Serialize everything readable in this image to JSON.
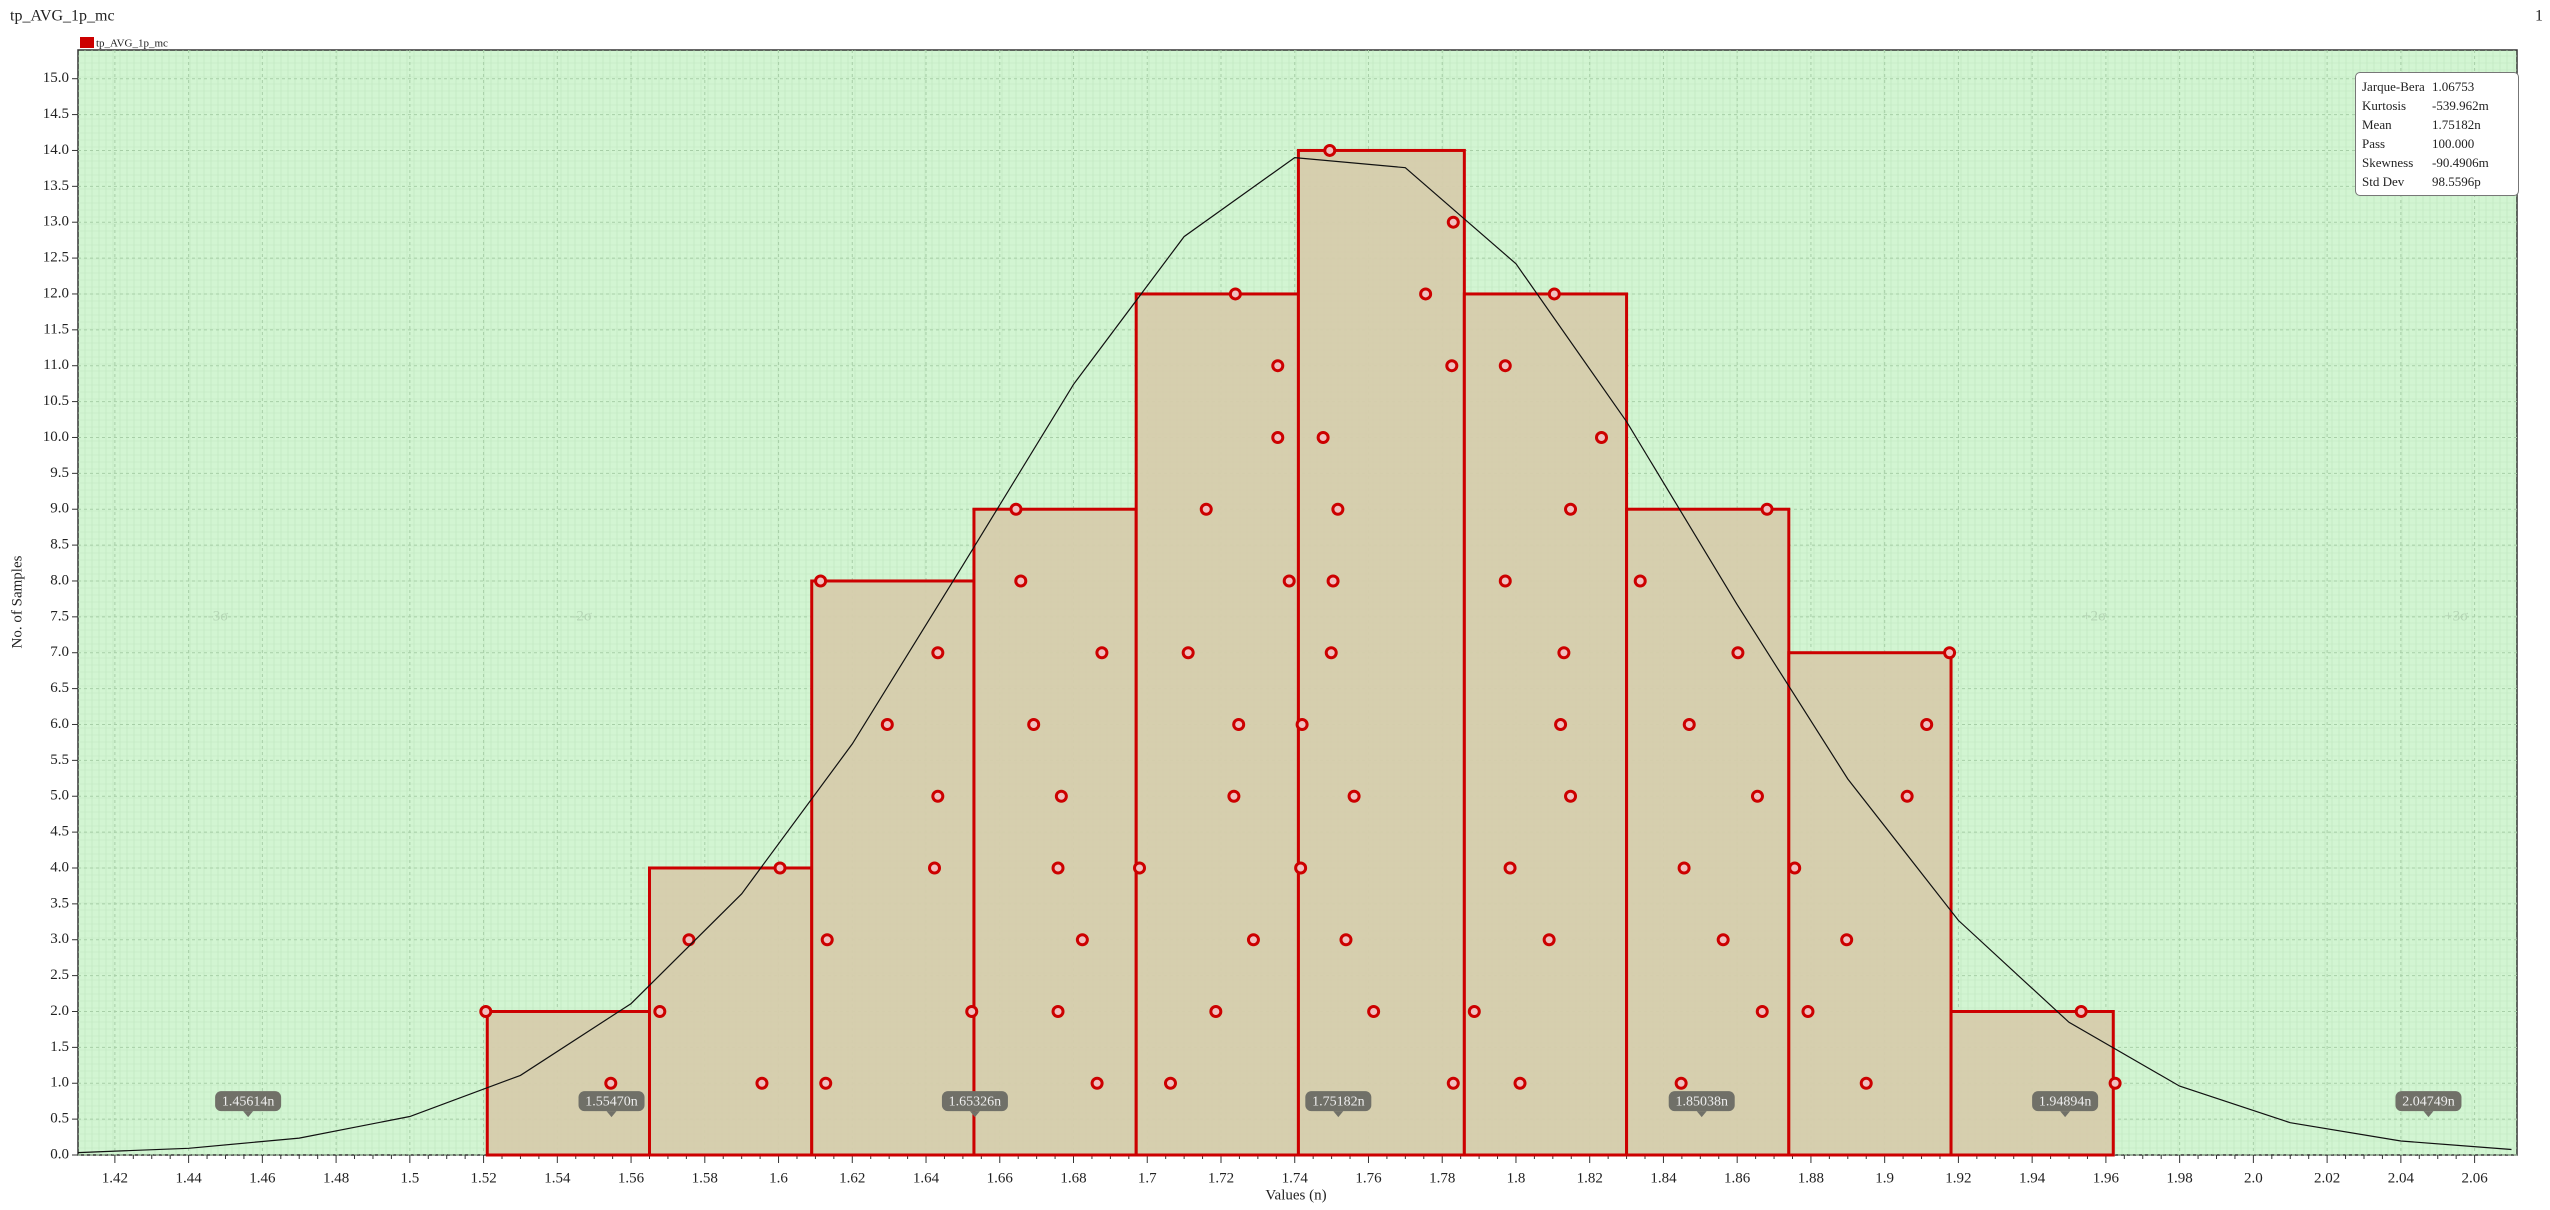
{
  "chart_data": {
    "type": "histogram",
    "title": "tp_AVG_1p_mc",
    "page_number": "1",
    "legend": "tp_AVG_1p_mc",
    "xlabel": "Values (n)",
    "ylabel": "No. of Samples",
    "color": "#cc0000",
    "fill": "#d6ccac",
    "bins": [
      1.521,
      1.565,
      1.609,
      1.653,
      1.697,
      1.741,
      1.786,
      1.83,
      1.874,
      1.918,
      1.962
    ],
    "values": [
      2,
      4,
      8,
      9,
      12,
      14,
      12,
      9,
      7,
      2
    ],
    "samples": {
      "x": [
        1.5206,
        1.5545,
        1.5678,
        1.5757,
        1.5955,
        1.6004,
        1.6114,
        1.6132,
        1.6128,
        1.6295,
        1.6423,
        1.6432,
        1.6432,
        1.6524,
        1.6644,
        1.6657,
        1.6692,
        1.6758,
        1.6758,
        1.6767,
        1.6824,
        1.6864,
        1.6877,
        1.6979,
        1.7063,
        1.7111,
        1.716,
        1.7186,
        1.7235,
        1.7239,
        1.7248,
        1.7288,
        1.7354,
        1.7354,
        1.7385,
        1.7416,
        1.742,
        1.7477,
        1.7495,
        1.7499,
        1.7504,
        1.7517,
        1.7539,
        1.7561,
        1.7614,
        1.7755,
        1.7826,
        1.783,
        1.783,
        1.7887,
        1.7971,
        1.7971,
        1.7984,
        1.8011,
        1.809,
        1.8104,
        1.8121,
        1.813,
        1.8148,
        1.8148,
        1.8232,
        1.8337,
        1.8448,
        1.8456,
        1.847,
        1.8562,
        1.8602,
        1.8655,
        1.8668,
        1.8681,
        1.8756,
        1.8792,
        1.8897,
        1.895,
        1.9061,
        1.9114,
        1.9176,
        1.9533,
        1.9625
      ],
      "values": [
        2,
        1,
        2,
        3,
        1,
        4,
        8,
        3,
        1,
        6,
        4,
        7,
        5,
        2,
        9,
        8,
        6,
        4,
        2,
        5,
        3,
        1,
        7,
        4,
        1,
        7,
        9,
        2,
        5,
        12,
        6,
        3,
        11,
        10,
        8,
        4,
        6,
        10,
        14,
        7,
        8,
        9,
        3,
        5,
        2,
        12,
        11,
        13,
        1,
        2,
        8,
        11,
        4,
        1,
        3,
        12,
        6,
        7,
        9,
        5,
        10,
        8,
        1,
        4,
        6,
        3,
        7,
        5,
        2,
        9,
        4,
        2,
        3,
        1,
        5,
        6,
        7,
        2,
        1
      ]
    },
    "curve": {
      "x": [
        1.41,
        1.44,
        1.47,
        1.5,
        1.53,
        1.56,
        1.59,
        1.62,
        1.65,
        1.68,
        1.71,
        1.74,
        1.77,
        1.8,
        1.83,
        1.86,
        1.89,
        1.92,
        1.95,
        1.98,
        2.01,
        2.04,
        2.07
      ],
      "values": [
        0.034,
        0.094,
        0.236,
        0.536,
        1.11,
        2.11,
        3.64,
        5.73,
        8.22,
        10.74,
        12.8,
        13.9,
        13.76,
        12.42,
        10.22,
        7.67,
        5.24,
        3.27,
        1.85,
        0.96,
        0.45,
        0.195,
        0.076
      ]
    },
    "markers": [
      {
        "value": 1.45614,
        "label": "1.45614n"
      },
      {
        "value": 1.5547,
        "label": "1.55470n"
      },
      {
        "value": 1.65326,
        "label": "1.65326n"
      },
      {
        "value": 1.75182,
        "label": "1.75182n"
      },
      {
        "value": 1.85038,
        "label": "1.85038n"
      },
      {
        "value": 1.94894,
        "label": "1.94894n"
      },
      {
        "value": 2.04749,
        "label": "2.04749n"
      }
    ],
    "sigma_labels": [
      {
        "value": 1.448,
        "label": "-3σ"
      },
      {
        "value": 1.5466,
        "label": "-2σ"
      },
      {
        "value": 1.9568,
        "label": "+2σ"
      },
      {
        "value": 2.055,
        "label": "+3σ"
      }
    ],
    "stats": [
      {
        "name": "Jarque-Bera",
        "value": "1.06753"
      },
      {
        "name": "Kurtosis",
        "value": "-539.962m"
      },
      {
        "name": "Mean",
        "value": "1.75182n"
      },
      {
        "name": "Pass",
        "value": "100.000"
      },
      {
        "name": "Skewness",
        "value": "-90.4906m"
      },
      {
        "name": "Std Dev",
        "value": "98.5596p"
      }
    ],
    "xlim": [
      1.41,
      2.0715
    ],
    "ylim": [
      0,
      15.4
    ],
    "xticks": [
      1.42,
      1.44,
      1.46,
      1.48,
      1.5,
      1.52,
      1.54,
      1.56,
      1.58,
      1.6,
      1.62,
      1.64,
      1.66,
      1.68,
      1.7,
      1.72,
      1.74,
      1.76,
      1.78,
      1.8,
      1.82,
      1.84,
      1.86,
      1.88,
      1.9,
      1.92,
      1.94,
      1.96,
      1.98,
      {
        "value": 2,
        "label": "2.0"
      },
      2.02,
      2.04,
      2.06
    ],
    "yticks": [
      {
        "value": 0,
        "label": "0.0"
      },
      0.5,
      {
        "value": 1,
        "label": "1.0"
      },
      1.5,
      {
        "value": 2,
        "label": "2.0"
      },
      2.5,
      {
        "value": 3,
        "label": "3.0"
      },
      3.5,
      {
        "value": 4,
        "label": "4.0"
      },
      4.5,
      {
        "value": 5,
        "label": "5.0"
      },
      5.5,
      {
        "value": 6,
        "label": "6.0"
      },
      6.5,
      {
        "value": 7,
        "label": "7.0"
      },
      7.5,
      {
        "value": 8,
        "label": "8.0"
      },
      8.5,
      {
        "value": 9,
        "label": "9.0"
      },
      9.5,
      {
        "value": 10,
        "label": "10.0"
      },
      10.5,
      {
        "value": 11,
        "label": "11.0"
      },
      11.5,
      {
        "value": 12,
        "label": "12.0"
      },
      12.5,
      {
        "value": 13,
        "label": "13.0"
      },
      13.5,
      {
        "value": 14,
        "label": "14.0"
      },
      14.5,
      {
        "value": 15,
        "label": "15.0"
      }
    ],
    "grid": true
  }
}
